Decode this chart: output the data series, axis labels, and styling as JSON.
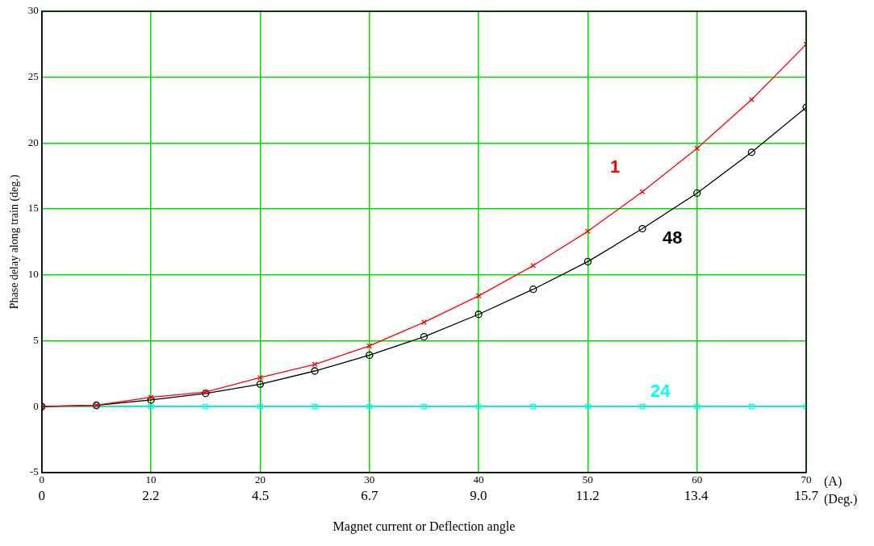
{
  "chart_data": {
    "type": "line",
    "xlabel": "Magnet current or Deflection angle",
    "ylabel": "Phase delay along train (deg.)",
    "x": [
      0,
      5,
      10,
      15,
      20,
      25,
      30,
      35,
      40,
      45,
      50,
      55,
      60,
      65,
      70
    ],
    "series": [
      {
        "name": "1",
        "color": "#ff0000",
        "marker": "cross",
        "values": [
          0,
          0.1,
          0.7,
          1.1,
          2.2,
          3.2,
          4.6,
          6.4,
          8.4,
          10.7,
          13.3,
          16.3,
          19.6,
          23.3,
          27.5
        ]
      },
      {
        "name": "48",
        "color": "#000000",
        "marker": "circle",
        "values": [
          0,
          0.1,
          0.5,
          1.0,
          1.7,
          2.7,
          3.9,
          5.3,
          7.0,
          8.9,
          11.0,
          13.5,
          16.2,
          19.3,
          22.7
        ]
      },
      {
        "name": "24",
        "color": "#00ffff",
        "marker": "square",
        "values": [
          0,
          0,
          0,
          0,
          0,
          0,
          0,
          0,
          0,
          0,
          0,
          0,
          0,
          0,
          0
        ]
      }
    ],
    "xlim": [
      0,
      70
    ],
    "xticks": [
      0,
      10,
      20,
      30,
      40,
      50,
      60,
      70
    ],
    "x2lim": [
      0,
      15.7
    ],
    "x2ticks": [
      0,
      {
        "value": 2.24,
        "label": "2.2"
      },
      {
        "value": 4.49,
        "label": "4.5"
      },
      {
        "value": 6.73,
        "label": "6.7"
      },
      {
        "value": 8.97,
        "label": "9.0"
      },
      {
        "value": 11.21,
        "label": "11.2"
      },
      {
        "value": 13.44,
        "label": "13.4"
      },
      15.7
    ],
    "ylim": [
      -5,
      30
    ],
    "yticks": [
      -5,
      0,
      5,
      10,
      15,
      20,
      25,
      30
    ],
    "annotations": [
      "(A)",
      "(Deg.)"
    ],
    "grid": true,
    "legend": false,
    "line_style": "solid"
  }
}
